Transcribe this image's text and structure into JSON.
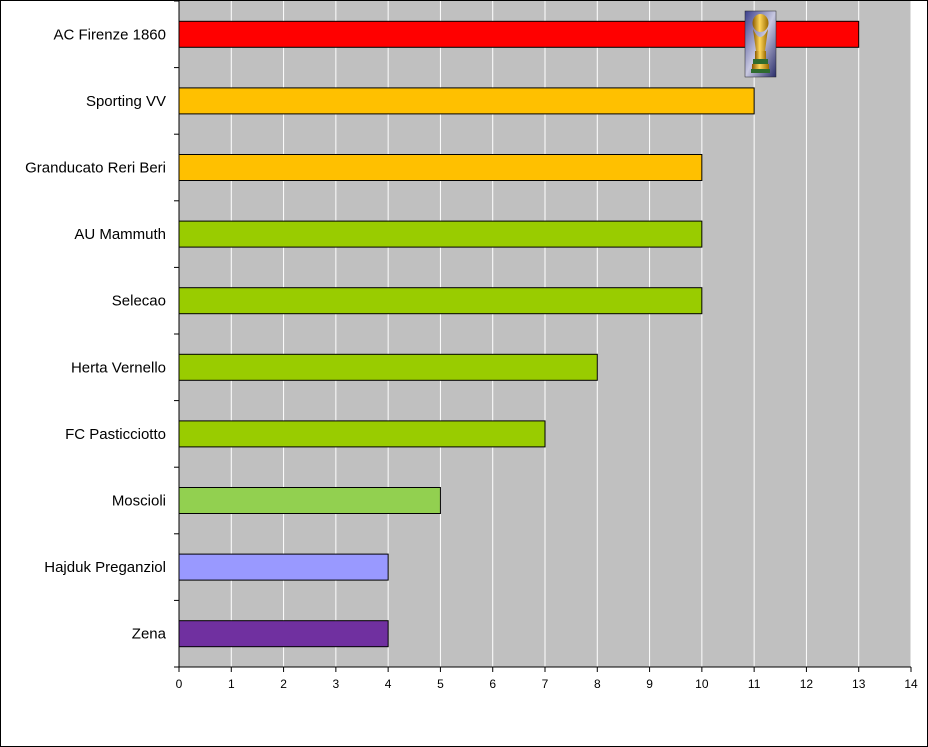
{
  "chart_data": {
    "type": "bar",
    "orientation": "horizontal",
    "title": "",
    "xlabel": "",
    "ylabel": "",
    "categories": [
      "AC Firenze 1860",
      "Sporting VV",
      "Granducato Reri Beri",
      "AU Mammuth",
      "Selecao",
      "Herta Vernello",
      "FC Pasticciotto",
      "Moscioli",
      "Hajduk Preganziol",
      "Zena"
    ],
    "values": [
      13,
      11,
      10,
      10,
      10,
      8,
      7,
      5,
      4,
      4
    ],
    "colors": [
      "#ff0000",
      "#ffc000",
      "#ffc000",
      "#99cc00",
      "#99cc00",
      "#99cc00",
      "#99cc00",
      "#92d050",
      "#9999ff",
      "#7030a0"
    ],
    "xlim": [
      0,
      14
    ],
    "xticks": [
      "0",
      "1",
      "2",
      "3",
      "4",
      "5",
      "6",
      "7",
      "8",
      "9",
      "10",
      "11",
      "12",
      "13",
      "14"
    ],
    "grid": true,
    "legend": "none",
    "plot_background": "#c0c0c0",
    "annotation_icon": "trophy-icon"
  }
}
